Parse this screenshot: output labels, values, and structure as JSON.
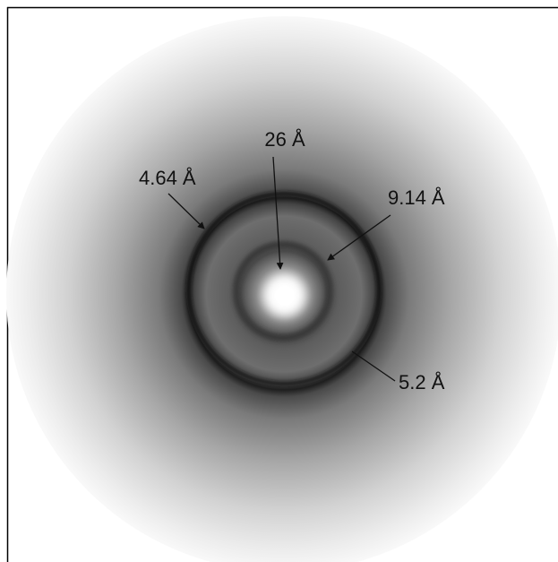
{
  "labels": [
    "26 Å",
    "4.64 Å",
    "9.14 Å",
    "5.2 Å"
  ]
}
